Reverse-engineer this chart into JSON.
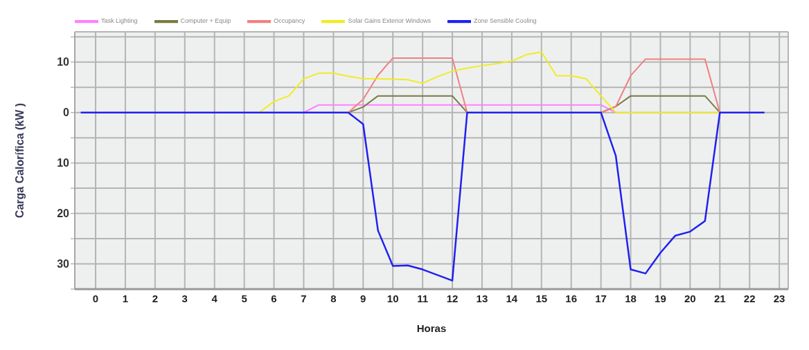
{
  "chart_data": {
    "type": "line",
    "xlabel": "Horas",
    "ylabel": "Carga Calorífica (kW )",
    "xlim": [
      -0.7,
      23.3
    ],
    "xticks": [
      0,
      1,
      2,
      3,
      4,
      5,
      6,
      7,
      8,
      9,
      10,
      11,
      12,
      13,
      14,
      15,
      16,
      17,
      18,
      19,
      20,
      21,
      22,
      23
    ],
    "ylim": [
      -35,
      16
    ],
    "yticks": [
      {
        "value": 15,
        "label": null
      },
      {
        "value": 10,
        "label": "10"
      },
      {
        "value": 5,
        "label": null
      },
      {
        "value": 0,
        "label": "0"
      },
      {
        "value": -5,
        "label": null
      },
      {
        "value": -10,
        "label": "10"
      },
      {
        "value": -15,
        "label": null
      },
      {
        "value": -20,
        "label": "20"
      },
      {
        "value": -25,
        "label": null
      },
      {
        "value": -30,
        "label": "30"
      },
      {
        "value": -35,
        "label": null
      }
    ],
    "grid": true,
    "legend": "top left",
    "marker": "none",
    "line_style": "solid",
    "series": [
      {
        "name": "Task Lighting",
        "color": "#ff80ff",
        "x": [
          7,
          7.5,
          17,
          17.5
        ],
        "values": [
          0,
          1.5,
          1.5,
          0
        ]
      },
      {
        "name": "Computer + Equip",
        "color": "#7a7a40",
        "x": [
          8.5,
          9,
          9.5,
          12,
          12.5,
          13,
          17,
          17.5,
          18,
          20.5,
          21
        ],
        "values": [
          0,
          1.1,
          3.3,
          3.3,
          0,
          null,
          0,
          1.2,
          3.3,
          3.3,
          0
        ]
      },
      {
        "name": "Occupancy",
        "color": "#f08080",
        "x": [
          8.5,
          9,
          9.5,
          10,
          12,
          12.5,
          13,
          17,
          17.5,
          18,
          18.5,
          20.5,
          21
        ],
        "values": [
          0,
          2.6,
          7.4,
          10.8,
          10.8,
          0,
          null,
          0,
          1.2,
          7.3,
          10.6,
          10.6,
          0
        ]
      },
      {
        "name": "Solar Gains Exterior Windows",
        "color": "#f0ec20",
        "x": [
          5.5,
          6,
          6.5,
          7,
          7.5,
          8,
          8.5,
          9,
          9.5,
          10,
          10.5,
          11,
          11.5,
          12,
          12.5,
          13,
          13.5,
          14,
          14.5,
          15,
          15.5,
          16,
          16.5,
          17,
          17.5,
          21
        ],
        "values": [
          0,
          2.2,
          3.3,
          6.7,
          7.8,
          7.8,
          7.2,
          6.7,
          6.7,
          6.6,
          6.5,
          5.8,
          7.1,
          8.2,
          8.8,
          9.3,
          9.7,
          10.2,
          11.5,
          12,
          7.3,
          7.3,
          6.7,
          3.3,
          0,
          0
        ]
      },
      {
        "name": "Zone Sensible Cooling",
        "color": "#2020f0",
        "x": [
          -0.5,
          8.5,
          9,
          9.5,
          10,
          10.5,
          11,
          12,
          12.5,
          17,
          17.5,
          18,
          18.5,
          19,
          19.5,
          20,
          20.5,
          21,
          22.5
        ],
        "values": [
          0,
          0,
          -2.3,
          -23.4,
          -30.4,
          -30.3,
          -31.1,
          -33.3,
          0,
          0,
          -8.6,
          -31.1,
          -31.9,
          -27.8,
          -24.4,
          -23.6,
          -21.5,
          0,
          0
        ]
      }
    ]
  }
}
